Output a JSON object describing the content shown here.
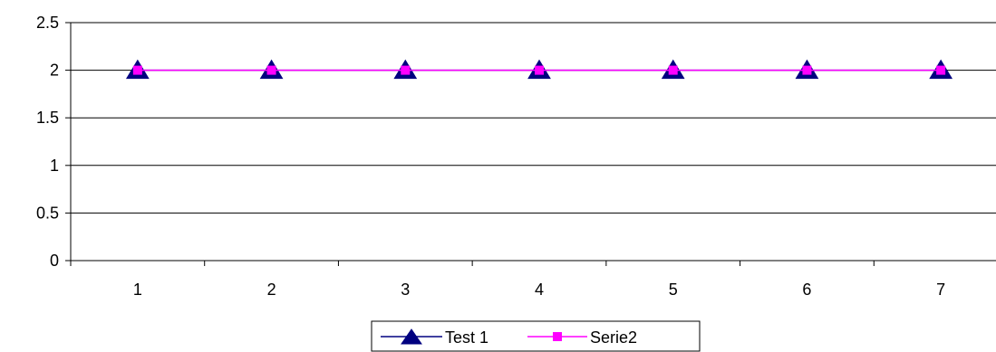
{
  "chart_data": {
    "type": "line",
    "categories": [
      "1",
      "2",
      "3",
      "4",
      "5",
      "6",
      "7"
    ],
    "series": [
      {
        "name": "Test 1",
        "values": [
          2,
          2,
          2,
          2,
          2,
          2,
          2
        ],
        "color": "#000080",
        "marker": "triangle"
      },
      {
        "name": "Serie2",
        "values": [
          2,
          2,
          2,
          2,
          2,
          2,
          2
        ],
        "color": "#ff00ff",
        "marker": "square"
      }
    ],
    "title": "",
    "xlabel": "",
    "ylabel": "",
    "ylim": [
      0,
      2.5
    ],
    "yticks": [
      "0",
      "0.5",
      "1",
      "1.5",
      "2",
      "2.5"
    ],
    "grid": "horizontal",
    "legend_position": "bottom"
  }
}
